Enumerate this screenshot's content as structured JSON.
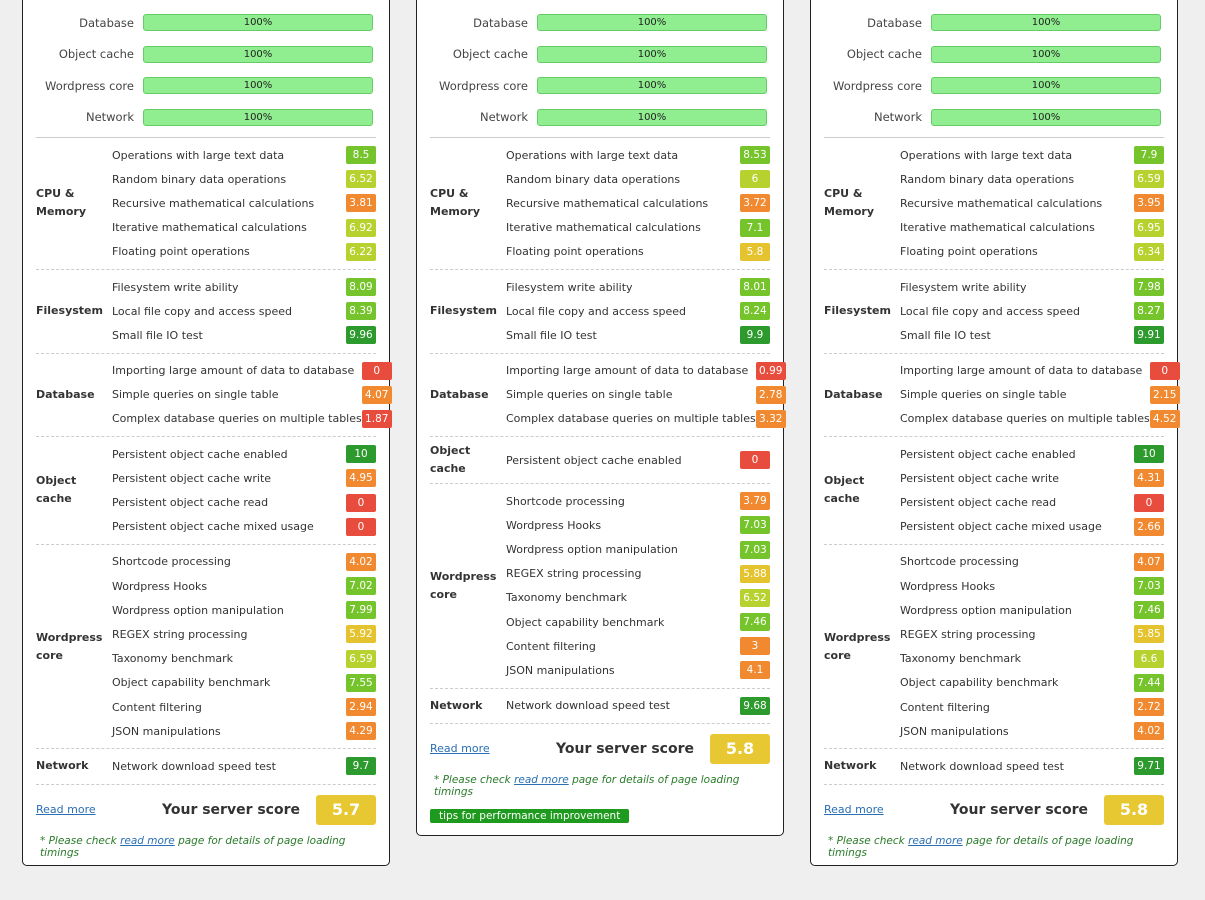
{
  "colors": {
    "red": "#e84c3d",
    "orange": "#f0892f",
    "yellow": "#e4c32e",
    "yellowgreen": "#b7d12f",
    "green": "#76c42b",
    "darkgreen": "#2d9a2d"
  },
  "cards": [
    {
      "summary": [
        {
          "label": "Database",
          "value": "100%"
        },
        {
          "label": "Object cache",
          "value": "100%"
        },
        {
          "label": "Wordpress core",
          "value": "100%"
        },
        {
          "label": "Network",
          "value": "100%"
        }
      ],
      "sections": [
        {
          "title": "CPU & Memory",
          "items": [
            {
              "label": "Operations with large text data",
              "score": "8.5",
              "color": "green"
            },
            {
              "label": "Random binary data operations",
              "score": "6.52",
              "color": "yellowgreen"
            },
            {
              "label": "Recursive mathematical calculations",
              "score": "3.81",
              "color": "orange"
            },
            {
              "label": "Iterative mathematical calculations",
              "score": "6.92",
              "color": "yellowgreen"
            },
            {
              "label": "Floating point operations",
              "score": "6.22",
              "color": "yellowgreen"
            }
          ]
        },
        {
          "title": "Filesystem",
          "items": [
            {
              "label": "Filesystem write ability",
              "score": "8.09",
              "color": "green"
            },
            {
              "label": "Local file copy and access speed",
              "score": "8.39",
              "color": "green"
            },
            {
              "label": "Small file IO test",
              "score": "9.96",
              "color": "darkgreen"
            }
          ]
        },
        {
          "title": "Database",
          "items": [
            {
              "label": "Importing large amount of data to database",
              "score": "0",
              "color": "red"
            },
            {
              "label": "Simple queries on single table",
              "score": "4.07",
              "color": "orange"
            },
            {
              "label": "Complex database queries on multiple tables",
              "score": "1.87",
              "color": "red"
            }
          ]
        },
        {
          "title": "Object cache",
          "items": [
            {
              "label": "Persistent object cache enabled",
              "score": "10",
              "color": "darkgreen"
            },
            {
              "label": "Persistent object cache write",
              "score": "4.95",
              "color": "orange"
            },
            {
              "label": "Persistent object cache read",
              "score": "0",
              "color": "red"
            },
            {
              "label": "Persistent object cache mixed usage",
              "score": "0",
              "color": "red"
            }
          ]
        },
        {
          "title": "Wordpress core",
          "items": [
            {
              "label": "Shortcode processing",
              "score": "4.02",
              "color": "orange"
            },
            {
              "label": "Wordpress Hooks",
              "score": "7.02",
              "color": "green"
            },
            {
              "label": "Wordpress option manipulation",
              "score": "7.99",
              "color": "green"
            },
            {
              "label": "REGEX string processing",
              "score": "5.92",
              "color": "yellow"
            },
            {
              "label": "Taxonomy benchmark",
              "score": "6.59",
              "color": "yellowgreen"
            },
            {
              "label": "Object capability benchmark",
              "score": "7.55",
              "color": "green"
            },
            {
              "label": "Content filtering",
              "score": "2.94",
              "color": "orange"
            },
            {
              "label": "JSON manipulations",
              "score": "4.29",
              "color": "orange"
            }
          ]
        },
        {
          "title": "Network",
          "items": [
            {
              "label": "Network download speed test",
              "score": "9.7",
              "color": "darkgreen"
            }
          ]
        }
      ],
      "read_more": "Read more",
      "score_label": "Your server score",
      "score": "5.7",
      "note_before": "* Please check ",
      "note_link": "read more",
      "note_after": " page for details of page loading timings"
    },
    {
      "summary": [
        {
          "label": "Database",
          "value": "100%"
        },
        {
          "label": "Object cache",
          "value": "100%"
        },
        {
          "label": "Wordpress core",
          "value": "100%"
        },
        {
          "label": "Network",
          "value": "100%"
        }
      ],
      "sections": [
        {
          "title": "CPU & Memory",
          "items": [
            {
              "label": "Operations with large text data",
              "score": "8.53",
              "color": "green"
            },
            {
              "label": "Random binary data operations",
              "score": "6",
              "color": "yellowgreen"
            },
            {
              "label": "Recursive mathematical calculations",
              "score": "3.72",
              "color": "orange"
            },
            {
              "label": "Iterative mathematical calculations",
              "score": "7.1",
              "color": "green"
            },
            {
              "label": "Floating point operations",
              "score": "5.8",
              "color": "yellow"
            }
          ]
        },
        {
          "title": "Filesystem",
          "items": [
            {
              "label": "Filesystem write ability",
              "score": "8.01",
              "color": "green"
            },
            {
              "label": "Local file copy and access speed",
              "score": "8.24",
              "color": "green"
            },
            {
              "label": "Small file IO test",
              "score": "9.9",
              "color": "darkgreen"
            }
          ]
        },
        {
          "title": "Database",
          "items": [
            {
              "label": "Importing large amount of data to database",
              "score": "0.99",
              "color": "red"
            },
            {
              "label": "Simple queries on single table",
              "score": "2.78",
              "color": "orange"
            },
            {
              "label": "Complex database queries on multiple tables",
              "score": "3.32",
              "color": "orange"
            }
          ]
        },
        {
          "title": "Object cache",
          "items": [
            {
              "label": "Persistent object cache enabled",
              "score": "0",
              "color": "red"
            }
          ]
        },
        {
          "title": "Wordpress core",
          "items": [
            {
              "label": "Shortcode processing",
              "score": "3.79",
              "color": "orange"
            },
            {
              "label": "Wordpress Hooks",
              "score": "7.03",
              "color": "green"
            },
            {
              "label": "Wordpress option manipulation",
              "score": "7.03",
              "color": "green"
            },
            {
              "label": "REGEX string processing",
              "score": "5.88",
              "color": "yellow"
            },
            {
              "label": "Taxonomy benchmark",
              "score": "6.52",
              "color": "yellowgreen"
            },
            {
              "label": "Object capability benchmark",
              "score": "7.46",
              "color": "green"
            },
            {
              "label": "Content filtering",
              "score": "3",
              "color": "orange"
            },
            {
              "label": "JSON manipulations",
              "score": "4.1",
              "color": "orange"
            }
          ]
        },
        {
          "title": "Network",
          "items": [
            {
              "label": "Network download speed test",
              "score": "9.68",
              "color": "darkgreen"
            }
          ]
        }
      ],
      "read_more": "Read more",
      "score_label": "Your server score",
      "score": "5.8",
      "note_before": "* Please check ",
      "note_link": "read more",
      "note_after": " page for details of page loading timings",
      "tips": "tips for performance improvement"
    },
    {
      "summary": [
        {
          "label": "Database",
          "value": "100%"
        },
        {
          "label": "Object cache",
          "value": "100%"
        },
        {
          "label": "Wordpress core",
          "value": "100%"
        },
        {
          "label": "Network",
          "value": "100%"
        }
      ],
      "sections": [
        {
          "title": "CPU & Memory",
          "items": [
            {
              "label": "Operations with large text data",
              "score": "7.9",
              "color": "green"
            },
            {
              "label": "Random binary data operations",
              "score": "6.59",
              "color": "yellowgreen"
            },
            {
              "label": "Recursive mathematical calculations",
              "score": "3.95",
              "color": "orange"
            },
            {
              "label": "Iterative mathematical calculations",
              "score": "6.95",
              "color": "yellowgreen"
            },
            {
              "label": "Floating point operations",
              "score": "6.34",
              "color": "yellowgreen"
            }
          ]
        },
        {
          "title": "Filesystem",
          "items": [
            {
              "label": "Filesystem write ability",
              "score": "7.98",
              "color": "green"
            },
            {
              "label": "Local file copy and access speed",
              "score": "8.27",
              "color": "green"
            },
            {
              "label": "Small file IO test",
              "score": "9.91",
              "color": "darkgreen"
            }
          ]
        },
        {
          "title": "Database",
          "items": [
            {
              "label": "Importing large amount of data to database",
              "score": "0",
              "color": "red"
            },
            {
              "label": "Simple queries on single table",
              "score": "2.15",
              "color": "orange"
            },
            {
              "label": "Complex database queries on multiple tables",
              "score": "4.52",
              "color": "orange"
            }
          ]
        },
        {
          "title": "Object cache",
          "items": [
            {
              "label": "Persistent object cache enabled",
              "score": "10",
              "color": "darkgreen"
            },
            {
              "label": "Persistent object cache write",
              "score": "4.31",
              "color": "orange"
            },
            {
              "label": "Persistent object cache read",
              "score": "0",
              "color": "red"
            },
            {
              "label": "Persistent object cache mixed usage",
              "score": "2.66",
              "color": "orange"
            }
          ]
        },
        {
          "title": "Wordpress core",
          "items": [
            {
              "label": "Shortcode processing",
              "score": "4.07",
              "color": "orange"
            },
            {
              "label": "Wordpress Hooks",
              "score": "7.03",
              "color": "green"
            },
            {
              "label": "Wordpress option manipulation",
              "score": "7.46",
              "color": "green"
            },
            {
              "label": "REGEX string processing",
              "score": "5.85",
              "color": "yellow"
            },
            {
              "label": "Taxonomy benchmark",
              "score": "6.6",
              "color": "yellowgreen"
            },
            {
              "label": "Object capability benchmark",
              "score": "7.44",
              "color": "green"
            },
            {
              "label": "Content filtering",
              "score": "2.72",
              "color": "orange"
            },
            {
              "label": "JSON manipulations",
              "score": "4.02",
              "color": "orange"
            }
          ]
        },
        {
          "title": "Network",
          "items": [
            {
              "label": "Network download speed test",
              "score": "9.71",
              "color": "darkgreen"
            }
          ]
        }
      ],
      "read_more": "Read more",
      "score_label": "Your server score",
      "score": "5.8",
      "note_before": "* Please check ",
      "note_link": "read more",
      "note_after": " page for details of page loading timings"
    }
  ]
}
